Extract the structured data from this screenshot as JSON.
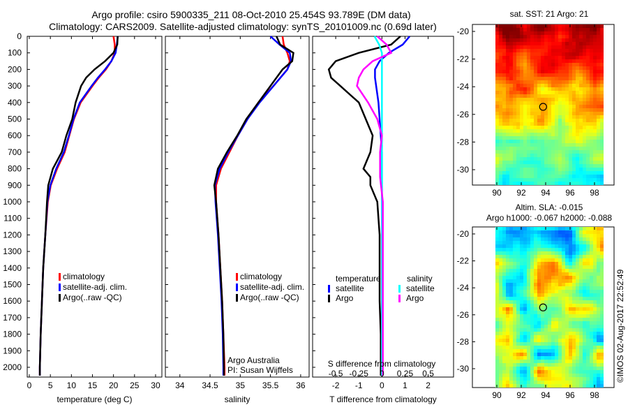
{
  "title": {
    "line1": "Argo profile: csiro 5900335_211 08-Oct-2010 25.454S 93.789E (DM data)",
    "line2": "Climatology: CARS2009. Satellite-adjusted climatology: synTS_20101009.nc (0.69d later)"
  },
  "credit": "©IMOS 02-Aug-2017 22:52:49",
  "colors": {
    "climatology": "#ff0000",
    "satellite": "#0000ff",
    "argo": "#000000",
    "sal_satellite": "#00ffff",
    "sal_argo": "#ff00ff"
  },
  "chart_data": [
    {
      "type": "line",
      "name": "temperature",
      "xlabel": "temperature (deg C)",
      "xlim": [
        -0.5,
        31.5
      ],
      "ylim": [
        2060,
        0
      ],
      "xticks": [
        0,
        5,
        10,
        15,
        20,
        25,
        30
      ],
      "yticks": [
        0,
        100,
        200,
        300,
        400,
        500,
        600,
        700,
        800,
        900,
        1000,
        1100,
        1200,
        1300,
        1400,
        1500,
        1600,
        1700,
        1800,
        1900,
        2000
      ],
      "legend": [
        "climatology",
        "satellite-adj. clim.",
        "Argo(..raw -QC)"
      ],
      "depth": [
        0,
        50,
        100,
        150,
        200,
        250,
        300,
        400,
        500,
        600,
        700,
        800,
        900,
        1000,
        1200,
        1400,
        1600,
        1800,
        2000,
        2050
      ],
      "series": [
        {
          "name": "climatology",
          "color": "#ff0000",
          "values": [
            20,
            20.3,
            20.3,
            19.5,
            18.2,
            16.5,
            15,
            12.2,
            10.6,
            9.5,
            8.4,
            6.6,
            5.1,
            4.4,
            3.8,
            3.3,
            3,
            2.7,
            2.5,
            2.5
          ]
        },
        {
          "name": "satellite-adj. clim.",
          "color": "#0000ff",
          "values": [
            21,
            20.8,
            20.5,
            19.5,
            18,
            16.3,
            14.8,
            12,
            10.5,
            9.4,
            8.2,
            6.4,
            5,
            4.3,
            3.8,
            3.3,
            3,
            2.7,
            2.5,
            2.5
          ]
        },
        {
          "name": "Argo(..raw -QC)",
          "color": "#000000",
          "values": [
            21,
            20.9,
            20,
            18,
            15.5,
            13.5,
            12.3,
            11,
            10.2,
            8.8,
            7.7,
            5.6,
            4.5,
            4.2,
            3.8,
            3.3,
            3,
            2.7,
            2.5,
            2.5
          ]
        }
      ]
    },
    {
      "type": "line",
      "name": "salinity",
      "xlabel": "salinity",
      "xlim": [
        33.76,
        36.14
      ],
      "ylim": [
        2060,
        0
      ],
      "xticks": [
        34,
        34.5,
        35,
        35.5,
        36
      ],
      "legend": [
        "climatology",
        "satellite-adj. clim.",
        "Argo(..raw -QC)"
      ],
      "annotation": [
        "Argo Australia",
        "PI: Susan Wijffels"
      ],
      "depth": [
        0,
        50,
        100,
        150,
        200,
        300,
        400,
        500,
        600,
        700,
        800,
        900,
        1000,
        1200,
        1400,
        1600,
        1800,
        2000,
        2050
      ],
      "series": [
        {
          "name": "climatology",
          "color": "#ff0000",
          "values": [
            35.7,
            35.72,
            35.78,
            35.82,
            35.78,
            35.55,
            35.3,
            35.12,
            34.96,
            34.82,
            34.68,
            34.6,
            34.6,
            34.64,
            34.67,
            34.7,
            34.72,
            34.74,
            34.74
          ]
        },
        {
          "name": "satellite-adj. clim.",
          "color": "#0000ff",
          "values": [
            35.5,
            35.65,
            35.82,
            35.84,
            35.78,
            35.55,
            35.32,
            35.12,
            34.96,
            34.8,
            34.66,
            34.58,
            34.59,
            34.63,
            34.66,
            34.69,
            34.71,
            34.72,
            34.72
          ]
        },
        {
          "name": "Argo(..raw -QC)",
          "color": "#000000",
          "values": [
            35.6,
            35.66,
            35.88,
            35.86,
            35.7,
            35.5,
            35.3,
            35.1,
            34.95,
            34.78,
            34.63,
            34.57,
            34.6,
            34.64,
            34.67,
            34.7,
            34.72,
            34.73,
            34.73
          ]
        }
      ]
    },
    {
      "type": "line",
      "name": "difference",
      "xlabel": "T difference from climatology",
      "x2label": "S difference from climatology",
      "xlim": [
        -3,
        3.1
      ],
      "ylim": [
        2060,
        0
      ],
      "xticks": [
        -2,
        -1,
        0,
        1,
        2
      ],
      "x2ticks": [
        -0.5,
        -0.25,
        0,
        0.25,
        0.5
      ],
      "x2scale": 4,
      "legend": {
        "temperature": "temperature",
        "salinity": "salinity",
        "satellite": "satellite",
        "argo": "Argo"
      },
      "depth": [
        0,
        50,
        100,
        150,
        200,
        250,
        300,
        400,
        500,
        600,
        700,
        800,
        850,
        900,
        1000,
        1200,
        1400,
        1600,
        1800,
        2000,
        2050
      ],
      "series": [
        {
          "name": "T satellite",
          "color": "#0000ff",
          "scale": 1,
          "values": [
            1.2,
            0.9,
            0.3,
            -0.1,
            -0.3,
            -0.3,
            -0.25,
            -0.15,
            -0.1,
            -0.05,
            0,
            0,
            0,
            0,
            0,
            0,
            0,
            0,
            0,
            0,
            0
          ]
        },
        {
          "name": "T Argo",
          "color": "#000000",
          "scale": 1,
          "values": [
            0.8,
            0.4,
            -1,
            -2,
            -2.3,
            -2.2,
            -1.8,
            -1,
            -0.7,
            -0.4,
            -0.5,
            -0.8,
            -0.5,
            -0.5,
            -0.2,
            -0.1,
            -0.1,
            -0.1,
            -0.05,
            -0.05,
            -0.05
          ]
        },
        {
          "name": "S satellite",
          "color": "#00ffff",
          "scale": 4,
          "values": [
            -0.08,
            -0.03,
            0,
            0,
            0,
            0,
            0,
            0,
            0,
            0,
            0,
            0,
            0,
            0,
            0,
            0,
            0,
            0,
            0,
            0,
            0
          ]
        },
        {
          "name": "S Argo",
          "color": "#ff00ff",
          "scale": 4,
          "values": [
            -0.05,
            0.05,
            0.1,
            -0.1,
            -0.2,
            -0.25,
            -0.27,
            -0.15,
            -0.05,
            0,
            -0.02,
            -0.02,
            -0.02,
            -0.01,
            0.01,
            0.01,
            0.01,
            0.01,
            0.01,
            0.01,
            0.01
          ]
        }
      ]
    },
    {
      "type": "heatmap",
      "name": "sst-map",
      "title": "sat. SST: 21 Argo: 21",
      "xlim": [
        89.1,
        99.7
      ],
      "ylim": [
        -31.5,
        -19.6
      ],
      "xticks": [
        90,
        92,
        94,
        96,
        98
      ],
      "yticks": [
        -20,
        -22,
        -24,
        -26,
        -28,
        -30
      ],
      "marker": [
        93.789,
        -25.454
      ]
    },
    {
      "type": "heatmap",
      "name": "sla-map",
      "title": [
        "Altim. SLA: -0.015",
        "Argo h1000: -0.067 h2000: -0.088"
      ],
      "xlim": [
        89.1,
        99.7
      ],
      "ylim": [
        -31.5,
        -19.6
      ],
      "xticks": [
        90,
        92,
        94,
        96,
        98
      ],
      "yticks": [
        -20,
        -22,
        -24,
        -26,
        -28,
        -30
      ],
      "marker": [
        93.789,
        -25.454
      ]
    }
  ]
}
